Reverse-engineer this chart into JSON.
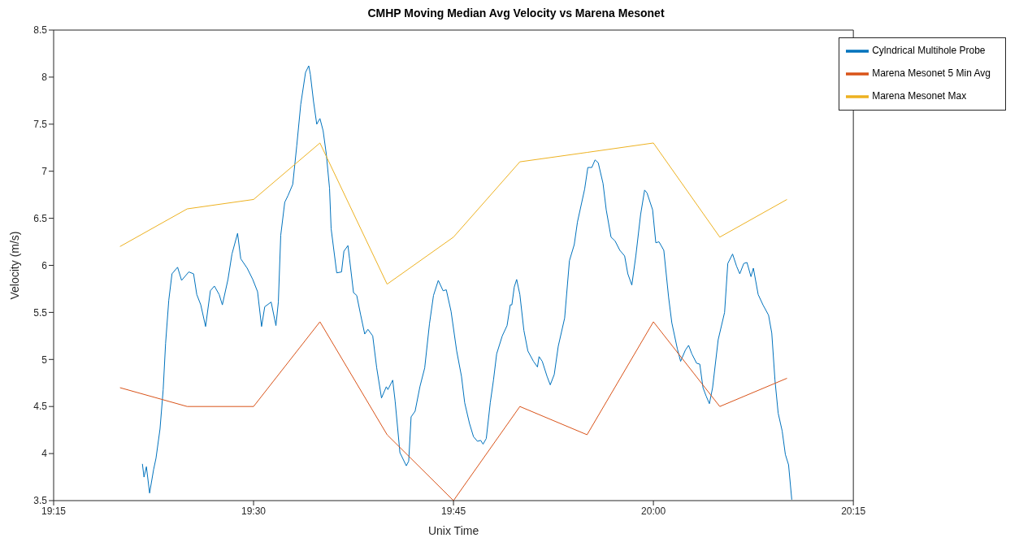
{
  "chart_data": {
    "type": "line",
    "title": "CMHP Moving Median Avg Velocity vs Marena Mesonet",
    "xlabel": "Unix Time",
    "ylabel": "Velocity (m/s)",
    "xlim": [
      19.25,
      20.25
    ],
    "xticks": [
      {
        "value": 19.25,
        "label": "19:15"
      },
      {
        "value": 19.5,
        "label": "19:30"
      },
      {
        "value": 19.75,
        "label": "19:45"
      },
      {
        "value": 20,
        "label": "20:00"
      },
      {
        "value": 20.25,
        "label": "20:15"
      }
    ],
    "ylim": [
      3.5,
      8.5
    ],
    "yticks": [
      3.5,
      4,
      4.5,
      5,
      5.5,
      6,
      6.5,
      7,
      7.5,
      8,
      8.5
    ],
    "grid": false,
    "legend": "top right",
    "marker": "none",
    "line_style": "solid",
    "series": [
      {
        "name": "Cylndrical Multihole Probe",
        "color": "#0072bd",
        "x": [
          19.361,
          19.363,
          19.366,
          19.37,
          19.375,
          19.378,
          19.383,
          19.387,
          19.39,
          19.394,
          19.398,
          19.405,
          19.41,
          19.419,
          19.425,
          19.429,
          19.434,
          19.44,
          19.446,
          19.451,
          19.457,
          19.461,
          19.468,
          19.473,
          19.48,
          19.484,
          19.492,
          19.499,
          19.505,
          19.51,
          19.514,
          19.522,
          19.528,
          19.531,
          19.534,
          19.539,
          19.543,
          19.549,
          19.554,
          19.559,
          19.565,
          19.569,
          19.571,
          19.575,
          19.579,
          19.583,
          19.587,
          19.591,
          19.595,
          19.597,
          19.604,
          19.61,
          19.613,
          19.618,
          19.62,
          19.625,
          19.629,
          19.634,
          19.639,
          19.643,
          19.649,
          19.654,
          19.66,
          19.666,
          19.668,
          19.674,
          19.677,
          19.683,
          19.691,
          19.694,
          19.697,
          19.702,
          19.708,
          19.714,
          19.72,
          19.725,
          19.731,
          19.737,
          19.741,
          19.747,
          19.754,
          19.76,
          19.764,
          19.77,
          19.775,
          19.78,
          19.784,
          19.787,
          19.791,
          19.796,
          19.8,
          19.804,
          19.811,
          19.817,
          19.821,
          19.823,
          19.826,
          19.829,
          19.833,
          19.838,
          19.843,
          19.85,
          19.855,
          19.857,
          19.861,
          19.867,
          19.871,
          19.876,
          19.881,
          19.889,
          19.895,
          19.901,
          19.905,
          19.914,
          19.918,
          19.923,
          19.927,
          19.931,
          19.937,
          19.941,
          19.947,
          19.952,
          19.958,
          19.964,
          19.968,
          19.973,
          19.978,
          19.984,
          19.989,
          19.992,
          19.999,
          20.003,
          20.007,
          20.013,
          20.019,
          20.023,
          20.03,
          20.034,
          20.04,
          20.044,
          20.048,
          20.054,
          20.058,
          20.062,
          20.066,
          20.07,
          20.074,
          20.081,
          20.089,
          20.093,
          20.099,
          20.104,
          20.108,
          20.113,
          20.117,
          20.122,
          20.125,
          20.131,
          20.137,
          20.144,
          20.148,
          20.152,
          20.156,
          20.161,
          20.165,
          20.169,
          20.173
        ],
        "values": [
          3.89,
          3.75,
          3.86,
          3.58,
          3.83,
          3.95,
          4.26,
          4.68,
          5.17,
          5.63,
          5.91,
          5.98,
          5.84,
          5.93,
          5.91,
          5.69,
          5.58,
          5.35,
          5.73,
          5.78,
          5.69,
          5.58,
          5.85,
          6.12,
          6.34,
          6.07,
          5.97,
          5.85,
          5.72,
          5.35,
          5.56,
          5.61,
          5.36,
          5.61,
          6.32,
          6.67,
          6.74,
          6.86,
          7.27,
          7.71,
          8.05,
          8.12,
          8.03,
          7.74,
          7.5,
          7.56,
          7.43,
          7.18,
          6.82,
          6.39,
          5.92,
          5.93,
          6.15,
          6.21,
          6.07,
          5.71,
          5.68,
          5.47,
          5.27,
          5.32,
          5.25,
          4.91,
          4.59,
          4.71,
          4.68,
          4.78,
          4.56,
          4.01,
          3.87,
          3.92,
          4.39,
          4.45,
          4.71,
          4.91,
          5.38,
          5.68,
          5.84,
          5.73,
          5.74,
          5.51,
          5.09,
          4.82,
          4.54,
          4.32,
          4.18,
          4.13,
          4.14,
          4.1,
          4.16,
          4.54,
          4.78,
          5.06,
          5.25,
          5.36,
          5.58,
          5.58,
          5.77,
          5.85,
          5.69,
          5.31,
          5.09,
          4.98,
          4.92,
          5.03,
          4.98,
          4.82,
          4.73,
          4.84,
          5.14,
          5.44,
          6.05,
          6.22,
          6.46,
          6.81,
          7.04,
          7.04,
          7.12,
          7.09,
          6.87,
          6.59,
          6.3,
          6.26,
          6.16,
          6.1,
          5.91,
          5.79,
          6.1,
          6.54,
          6.8,
          6.77,
          6.59,
          6.24,
          6.25,
          6.16,
          5.66,
          5.39,
          5.11,
          4.98,
          5.1,
          5.15,
          5.06,
          4.96,
          4.95,
          4.7,
          4.61,
          4.53,
          4.7,
          5.21,
          5.5,
          6.02,
          6.12,
          5.99,
          5.91,
          6.02,
          6.03,
          5.88,
          5.97,
          5.69,
          5.58,
          5.47,
          5.28,
          4.78,
          4.43,
          4.24,
          3.99,
          3.88,
          3.51
        ]
      },
      {
        "name": "Marena Mesonet 5 Min Avg",
        "color": "#d95319",
        "x": [
          19.333,
          19.417,
          19.5,
          19.583,
          19.667,
          19.75,
          19.833,
          19.917,
          20,
          20.083,
          20.167
        ],
        "values": [
          4.7,
          4.5,
          4.5,
          5.4,
          4.2,
          3.5,
          4.5,
          4.2,
          5.4,
          4.5,
          4.8
        ]
      },
      {
        "name": "Marena Mesonet Max",
        "color": "#edb120",
        "x": [
          19.333,
          19.417,
          19.5,
          19.583,
          19.667,
          19.75,
          19.833,
          19.917,
          20,
          20.083,
          20.167
        ],
        "values": [
          6.2,
          6.6,
          6.7,
          7.3,
          5.8,
          6.3,
          7.1,
          7.2,
          7.3,
          6.3,
          6.7
        ]
      }
    ]
  }
}
